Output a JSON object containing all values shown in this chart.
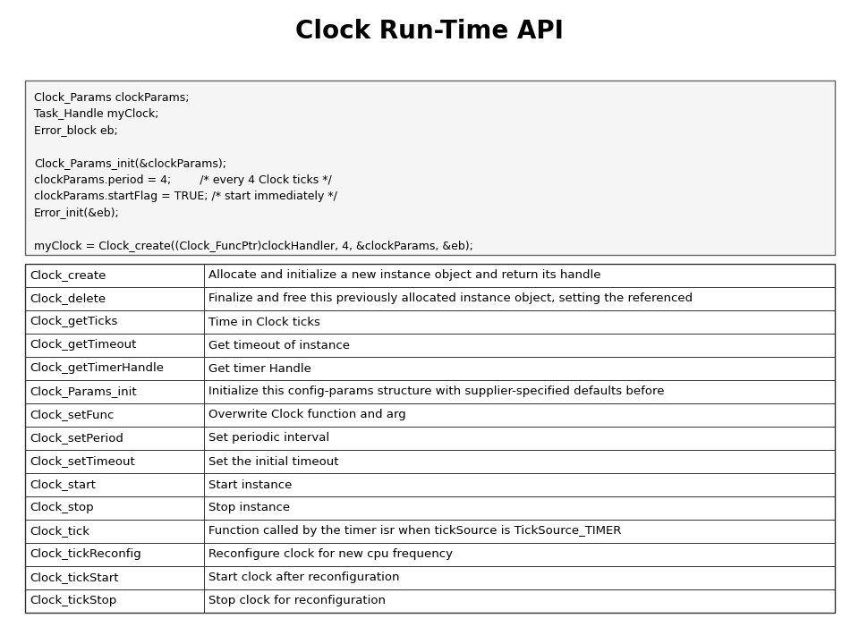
{
  "title": "Clock Run-Time API",
  "title_fontsize": 20,
  "title_fontweight": "bold",
  "bg_color": "#ffffff",
  "code_text": "Clock_Params clockParams;\nTask_Handle myClock;\nError_block eb;\n\nClock_Params_init(&clockParams);\nclockParams.period = 4;        /* every 4 Clock ticks */\nclockParams.startFlag = TRUE; /* start immediately */\nError_init(&eb);\n\nmyClock = Clock_create((Clock_FuncPtr)clockHandler, 4, &clockParams, &eb);",
  "table_data": [
    [
      "Clock_create",
      "Allocate and initialize a new instance object and return its handle"
    ],
    [
      "Clock_delete",
      "Finalize and free this previously allocated instance object, setting the referenced"
    ],
    [
      "Clock_getTicks",
      "Time in Clock ticks"
    ],
    [
      "Clock_getTimeout",
      "Get timeout of instance"
    ],
    [
      "Clock_getTimerHandle",
      "Get timer Handle"
    ],
    [
      "Clock_Params_init",
      "Initialize this config-params structure with supplier-specified defaults before"
    ],
    [
      "Clock_setFunc",
      "Overwrite Clock function and arg"
    ],
    [
      "Clock_setPeriod",
      "Set periodic interval"
    ],
    [
      "Clock_setTimeout",
      "Set the initial timeout"
    ],
    [
      "Clock_start",
      "Start instance"
    ],
    [
      "Clock_stop",
      "Stop instance"
    ],
    [
      "Clock_tick",
      "Function called by the timer isr when tickSource is TickSource_TIMER"
    ],
    [
      "Clock_tickReconfig",
      "Reconfigure clock for new cpu frequency"
    ],
    [
      "Clock_tickStart",
      "Start clock after reconfiguration"
    ],
    [
      "Clock_tickStop",
      "Stop clock for reconfiguration"
    ]
  ],
  "code_fontsize": 9,
  "table_fontsize": 9.5
}
